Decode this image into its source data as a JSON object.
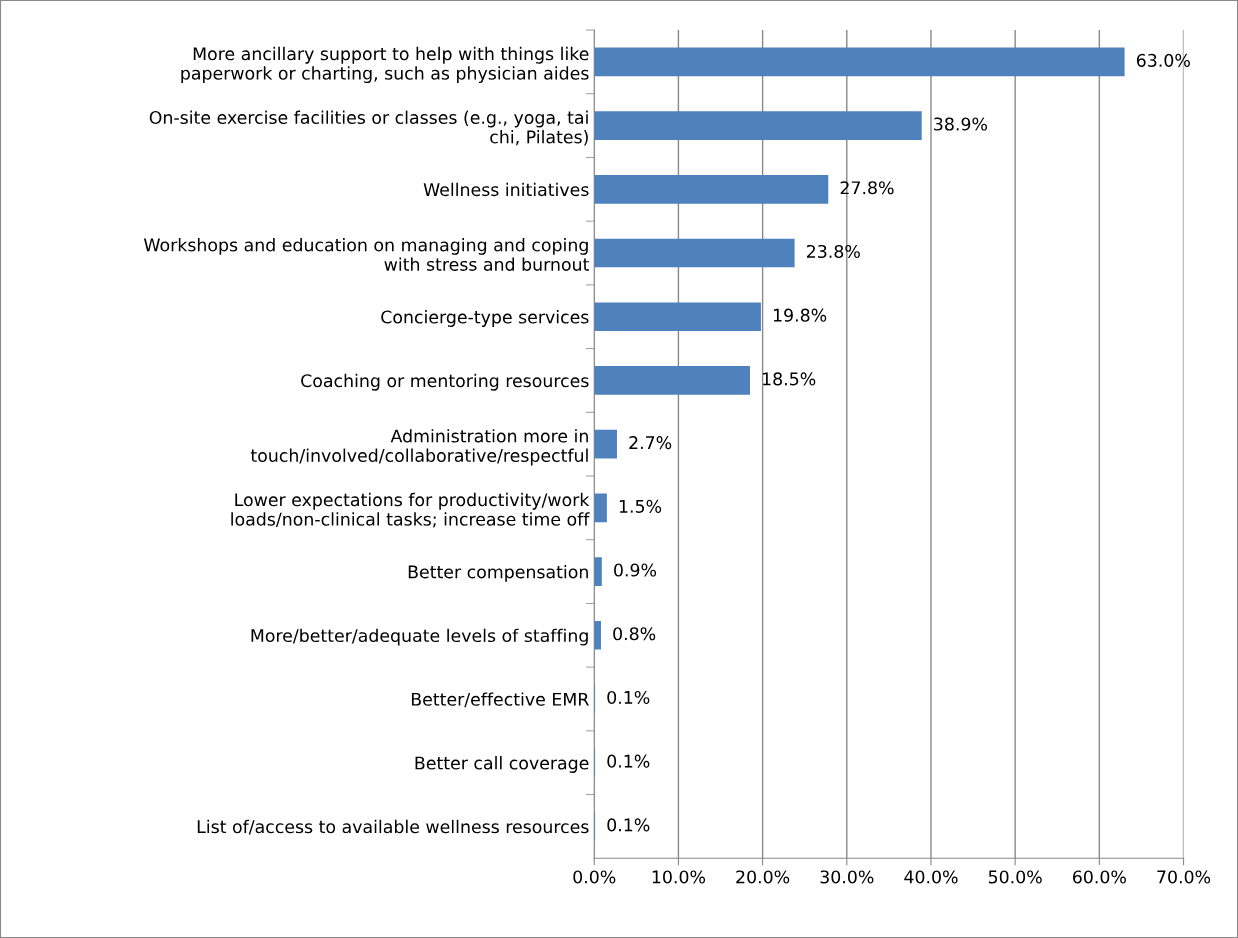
{
  "chart_data": {
    "type": "bar",
    "orientation": "horizontal",
    "categories": [
      "More ancillary support to help with things like\npaperwork or charting, such as physician aides",
      "On-site exercise facilities or classes (e.g., yoga, tai\nchi, Pilates)",
      "Wellness initiatives",
      "Workshops and education on managing and coping\nwith stress and burnout",
      "Concierge-type services",
      "Coaching or mentoring resources",
      "Administration more in\ntouch/involved/collaborative/respectful",
      "Lower expectations for productivity/work\nloads/non-clinical tasks; increase time off",
      "Better compensation",
      "More/better/adequate levels of staffing",
      "Better/effective EMR",
      "Better call coverage",
      "List of/access to available wellness resources"
    ],
    "values": [
      63.0,
      38.9,
      27.8,
      23.8,
      19.8,
      18.5,
      2.7,
      1.5,
      0.9,
      0.8,
      0.1,
      0.1,
      0.1
    ],
    "value_labels": [
      "63.0%",
      "38.9%",
      "27.8%",
      "23.8%",
      "19.8%",
      "18.5%",
      "2.7%",
      "1.5%",
      "0.9%",
      "0.8%",
      "0.1%",
      "0.1%",
      "0.1%"
    ],
    "color": "#4f81bd",
    "xlim": [
      0,
      70
    ],
    "xticks": [
      {
        "value": 0,
        "label": "0.0%"
      },
      {
        "value": 10,
        "label": "10.0%"
      },
      {
        "value": 20,
        "label": "20.0%"
      },
      {
        "value": 30,
        "label": "30.0%"
      },
      {
        "value": 40,
        "label": "40.0%"
      },
      {
        "value": 50,
        "label": "50.0%"
      },
      {
        "value": 60,
        "label": "60.0%"
      },
      {
        "value": 70,
        "label": "70.0%"
      }
    ],
    "grid": "x",
    "legend": false
  }
}
